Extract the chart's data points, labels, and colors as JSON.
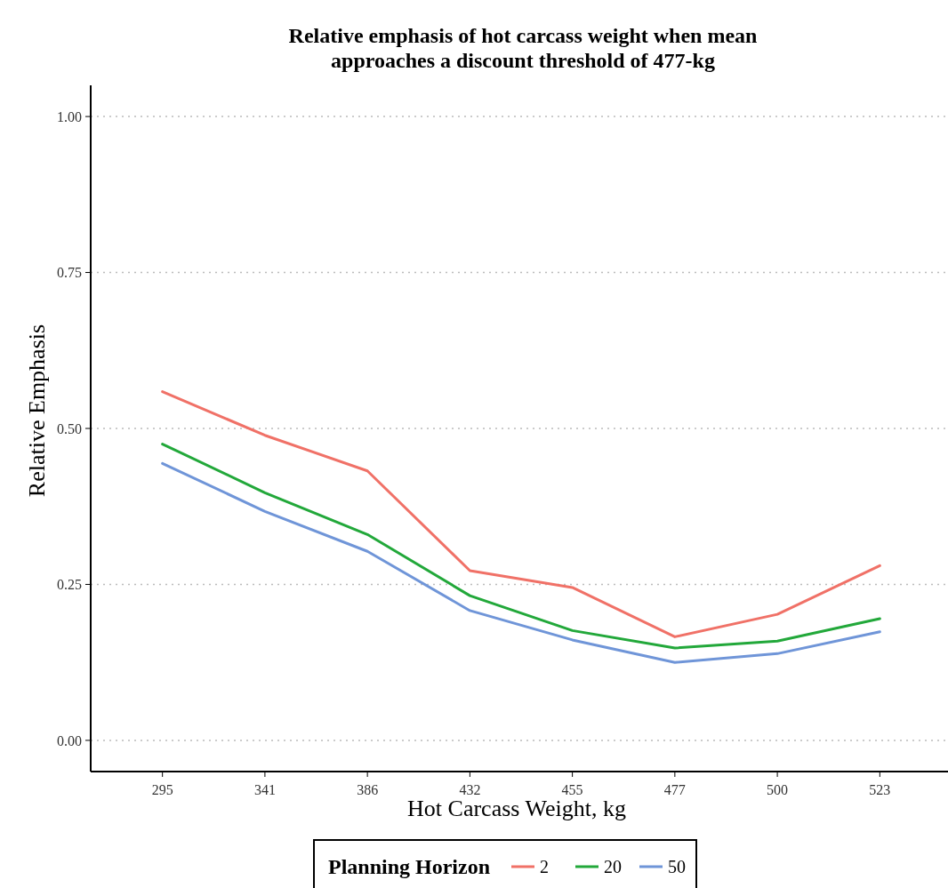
{
  "chart_data": {
    "type": "line",
    "title": "Relative emphasis of hot carcass weight when mean\napproaches a discount threshold of 477-kg",
    "xlabel": "Hot Carcass Weight, kg",
    "ylabel": "Relative Emphasis",
    "legend_title": "Planning Horizon",
    "categories": [
      "295",
      "341",
      "386",
      "432",
      "455",
      "477",
      "500",
      "523"
    ],
    "series": [
      {
        "name": "2",
        "color": "#f07167",
        "values": [
          0.559,
          0.489,
          0.432,
          0.272,
          0.245,
          0.166,
          0.202,
          0.28
        ]
      },
      {
        "name": "20",
        "color": "#22a83a",
        "values": [
          0.475,
          0.397,
          0.33,
          0.232,
          0.176,
          0.148,
          0.159,
          0.195
        ]
      },
      {
        "name": "50",
        "color": "#6f95d8",
        "values": [
          0.444,
          0.367,
          0.303,
          0.208,
          0.161,
          0.125,
          0.139,
          0.174
        ]
      }
    ],
    "ylim": [
      -0.05,
      1.05
    ],
    "yticks": [
      {
        "value": 0,
        "label": "0.00"
      },
      {
        "value": 0.25,
        "label": "0.25"
      },
      {
        "value": 0.5,
        "label": "0.50"
      },
      {
        "value": 0.75,
        "label": "0.75"
      },
      {
        "value": 1,
        "label": "1.00"
      }
    ],
    "grid": "y",
    "legend": "bottom",
    "line_style": "solid",
    "marker": "none"
  }
}
